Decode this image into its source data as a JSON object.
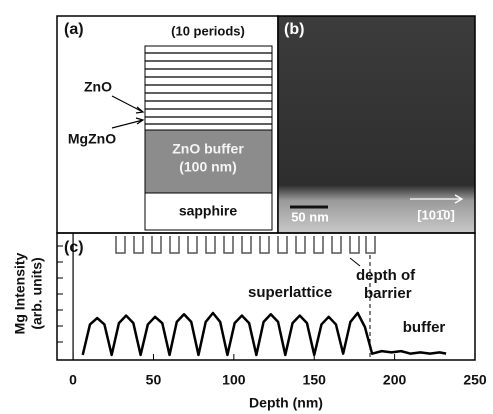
{
  "panel_a": {
    "label": "(a)",
    "periods": "(10 periods)",
    "zno": "ZnO",
    "mgzno": "MgZnO",
    "buffer": "ZnO buffer",
    "buffer_thickness": "(100 nm)",
    "substrate": "sapphire"
  },
  "panel_b": {
    "label": "(b)",
    "scale_bar": "50 nm",
    "direction": "[101̄0]"
  },
  "chart_data": {
    "type": "line",
    "panel_label": "(c)",
    "x_label": "Depth (nm)",
    "y_label": [
      "Mg Intensity",
      "(arb. units)"
    ],
    "annotations": [
      "superlattice",
      "depth of",
      "barrier",
      "buffer"
    ],
    "xlim": [
      -10,
      250
    ],
    "ylim": [
      0,
      10
    ],
    "xticks": [
      0,
      50,
      100,
      150,
      200,
      250
    ],
    "x": [
      6,
      10.5,
      15,
      19.5,
      24,
      28.5,
      33,
      37.5,
      42,
      46.5,
      51,
      55.5,
      60,
      64.5,
      69,
      73.5,
      78,
      82.5,
      87,
      91.5,
      96,
      100.5,
      105,
      109.5,
      114,
      118.5,
      123,
      127.5,
      132,
      136.5,
      141,
      145.5,
      150,
      154.5,
      159,
      163.5,
      168,
      172.5,
      177,
      181.5,
      186,
      192,
      198,
      204,
      210,
      216,
      222,
      228,
      232
    ],
    "series": [
      {
        "color": "#000000",
        "values": [
          0.4,
          2.8,
          3.3,
          2.8,
          0.4,
          2.9,
          3.5,
          2.9,
          0.4,
          2.8,
          3.4,
          2.9,
          0.4,
          3.0,
          3.6,
          3.0,
          0.4,
          3.0,
          3.7,
          3.0,
          0.4,
          2.9,
          3.5,
          2.9,
          0.4,
          3.0,
          3.6,
          3.0,
          0.4,
          2.9,
          3.5,
          2.9,
          0.4,
          2.8,
          3.4,
          2.8,
          0.5,
          3.0,
          3.7,
          2.6,
          0.5,
          0.7,
          0.6,
          0.7,
          0.5,
          0.6,
          0.5,
          0.6,
          0.5
        ]
      }
    ]
  }
}
